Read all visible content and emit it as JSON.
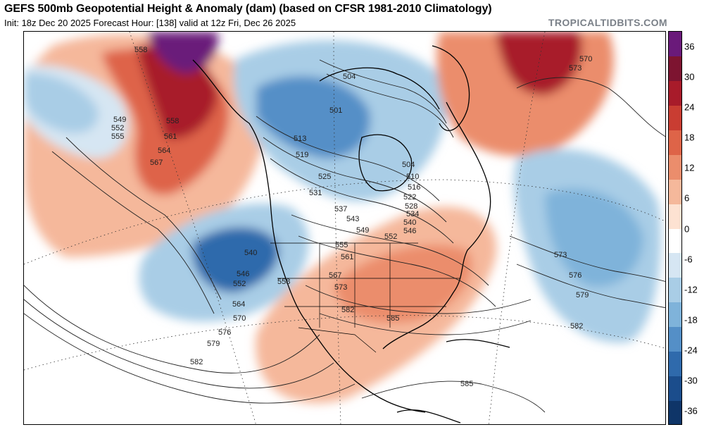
{
  "title": "GEFS 500mb Geopotential Height & Anomaly (dam) (based on CFSR 1981-2010 Climatology)",
  "subtitle": "Init: 18z Dec 20 2025   Forecast Hour: [138]   valid at 12z Fri, Dec 26 2025",
  "credit": "TROPICALTIDBITS.COM",
  "colorbar": {
    "ticks": [
      "36",
      "30",
      "24",
      "18",
      "12",
      "6",
      "0",
      "-6",
      "-12",
      "-18",
      "-24",
      "-30",
      "-36"
    ],
    "colors": [
      "#6a1a7a",
      "#7d1430",
      "#a81b2a",
      "#c93d32",
      "#de6448",
      "#eb8d6c",
      "#f5b89b",
      "#fde2d2",
      "#ffffff",
      "#d6e6f3",
      "#a9cde6",
      "#7fb3da",
      "#548fc7",
      "#2f6aac",
      "#1b4d8c",
      "#0f3568"
    ]
  },
  "contour_labels": [
    {
      "text": "558",
      "name": "label-558-alaska"
    },
    {
      "text": "549",
      "name": "label-549"
    },
    {
      "text": "552",
      "name": "label-552-pacific"
    },
    {
      "text": "555",
      "name": "label-555-pacific"
    },
    {
      "text": "558",
      "name": "label-558-pacific"
    },
    {
      "text": "561",
      "name": "label-561-pacific"
    },
    {
      "text": "564",
      "name": "label-564-pacific"
    },
    {
      "text": "567",
      "name": "label-567-pacific"
    },
    {
      "text": "501",
      "name": "label-501"
    },
    {
      "text": "504",
      "name": "label-504-arctic"
    },
    {
      "text": "513",
      "name": "label-513"
    },
    {
      "text": "519",
      "name": "label-519"
    },
    {
      "text": "525",
      "name": "label-525"
    },
    {
      "text": "531",
      "name": "label-531"
    },
    {
      "text": "537",
      "name": "label-537"
    },
    {
      "text": "543",
      "name": "label-543"
    },
    {
      "text": "549",
      "name": "label-549-central"
    },
    {
      "text": "552",
      "name": "label-552-central"
    },
    {
      "text": "555",
      "name": "label-555-central"
    },
    {
      "text": "561",
      "name": "label-561-central"
    },
    {
      "text": "567",
      "name": "label-567-central"
    },
    {
      "text": "573",
      "name": "label-573-central"
    },
    {
      "text": "582",
      "name": "label-582-gulf"
    },
    {
      "text": "585",
      "name": "label-585-gulf"
    },
    {
      "text": "504",
      "name": "label-504-hudson"
    },
    {
      "text": "510",
      "name": "label-510"
    },
    {
      "text": "516",
      "name": "label-516"
    },
    {
      "text": "522",
      "name": "label-522"
    },
    {
      "text": "528",
      "name": "label-528"
    },
    {
      "text": "534",
      "name": "label-534"
    },
    {
      "text": "540",
      "name": "label-540-east"
    },
    {
      "text": "546",
      "name": "label-546-east"
    },
    {
      "text": "540",
      "name": "label-540-west"
    },
    {
      "text": "546",
      "name": "label-546-west"
    },
    {
      "text": "552",
      "name": "label-552-west"
    },
    {
      "text": "558",
      "name": "label-558-west"
    },
    {
      "text": "564",
      "name": "label-564-west"
    },
    {
      "text": "570",
      "name": "label-570-west"
    },
    {
      "text": "576",
      "name": "label-576-west"
    },
    {
      "text": "579",
      "name": "label-579-west"
    },
    {
      "text": "582",
      "name": "label-582-west"
    },
    {
      "text": "570",
      "name": "label-570-atlantic"
    },
    {
      "text": "573",
      "name": "label-573-atlantic-n"
    },
    {
      "text": "573",
      "name": "label-573-atlantic"
    },
    {
      "text": "576",
      "name": "label-576-atlantic"
    },
    {
      "text": "579",
      "name": "label-579-atlantic"
    },
    {
      "text": "582",
      "name": "label-582-atlantic"
    },
    {
      "text": "585",
      "name": "label-585-caribbean"
    }
  ]
}
